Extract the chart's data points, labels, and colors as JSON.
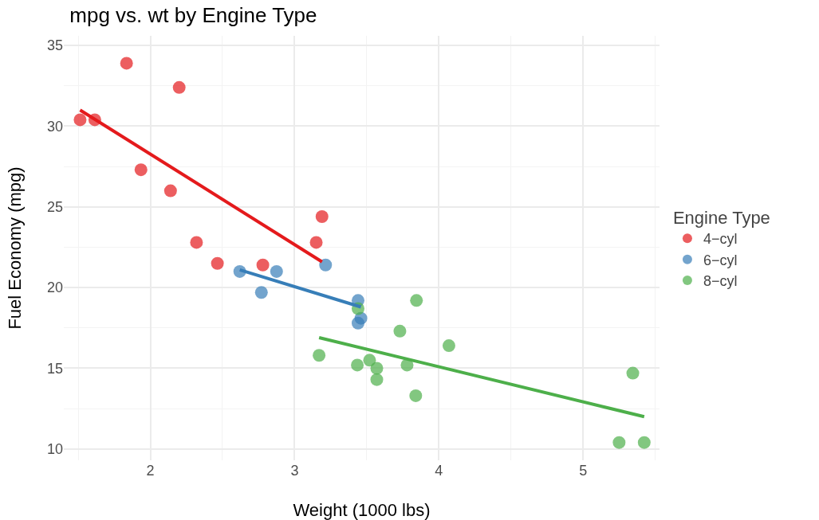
{
  "chart_data": {
    "type": "scatter",
    "title": "mpg vs. wt by Engine Type",
    "xlabel": "Weight (1000 lbs)",
    "ylabel": "Fuel Economy (mpg)",
    "legend_title": "Engine Type",
    "xlim": [
      1.4,
      5.53
    ],
    "xticks": [
      2,
      3,
      4,
      5
    ],
    "ylim": [
      9.3,
      35.6
    ],
    "yticks": [
      10,
      15,
      20,
      25,
      30,
      35
    ],
    "grid": true,
    "legend": "right",
    "series": [
      {
        "name": "4−cyl",
        "marker": "circle",
        "color": "#e41a1c",
        "x": [
          2.32,
          3.19,
          3.15,
          2.2,
          1.615,
          1.835,
          2.465,
          1.935,
          2.14,
          1.513,
          2.78
        ],
        "values": [
          22.8,
          24.4,
          22.8,
          32.4,
          30.4,
          33.9,
          21.5,
          27.3,
          26.0,
          30.4,
          21.4
        ]
      },
      {
        "name": "6−cyl",
        "marker": "circle",
        "color": "#377eb8",
        "x": [
          2.62,
          2.875,
          3.215,
          3.46,
          3.44,
          3.44,
          2.77
        ],
        "values": [
          21.0,
          21.0,
          21.4,
          18.1,
          19.2,
          17.8,
          19.7
        ]
      },
      {
        "name": "8−cyl",
        "marker": "circle",
        "color": "#4daf4a",
        "x": [
          3.44,
          3.57,
          4.07,
          3.73,
          3.78,
          5.25,
          5.424,
          5.345,
          3.52,
          3.435,
          3.84,
          3.845,
          3.17,
          3.57
        ],
        "values": [
          18.7,
          14.3,
          16.4,
          17.3,
          15.2,
          10.4,
          10.4,
          14.7,
          15.5,
          15.2,
          13.3,
          19.2,
          15.8,
          15.0
        ]
      },
      {
        "type": "line",
        "color": "#e41a1c",
        "x": [
          1.513,
          3.19
        ],
        "values": [
          31.0,
          21.6
        ]
      },
      {
        "type": "line",
        "color": "#377eb8",
        "x": [
          2.62,
          3.46
        ],
        "values": [
          21.1,
          18.8
        ]
      },
      {
        "type": "line",
        "color": "#4daf4a",
        "x": [
          3.17,
          5.424
        ],
        "values": [
          16.9,
          12.0
        ]
      }
    ]
  }
}
